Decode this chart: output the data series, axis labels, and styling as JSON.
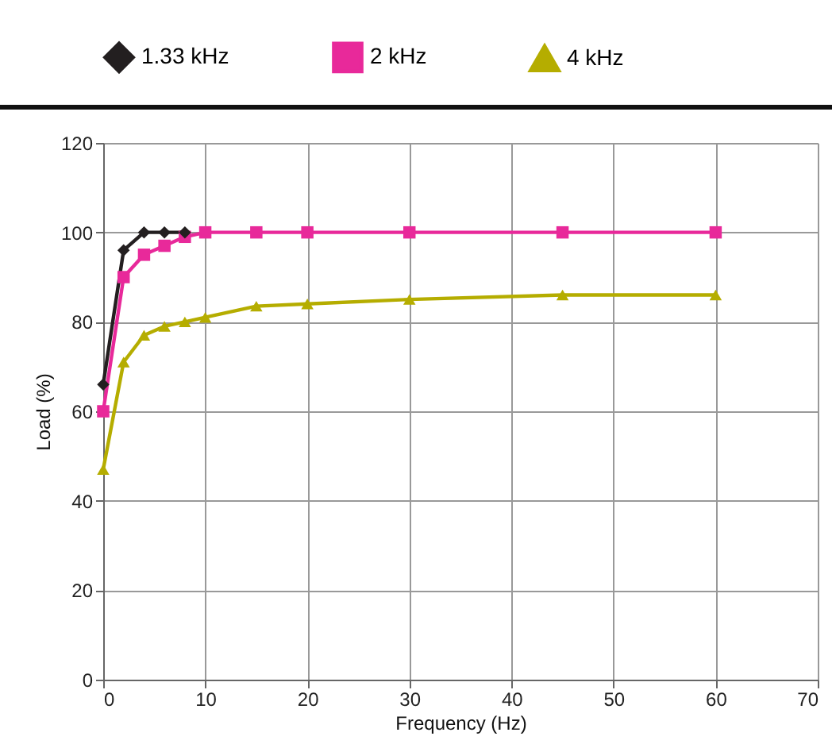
{
  "chart_data": {
    "type": "line",
    "xlabel": "Frequency (Hz)",
    "ylabel": "Load (%)",
    "xlim": [
      0,
      70
    ],
    "xticks": [
      0,
      10,
      20,
      30,
      40,
      50,
      60,
      70
    ],
    "ylim": [
      0,
      120
    ],
    "yticks": [
      0,
      20,
      40,
      60,
      80,
      100,
      120
    ],
    "grid": true,
    "legend": "top",
    "series": [
      {
        "name": "1.33 kHz",
        "color": "#231f20",
        "marker": "diamond",
        "x": [
          0,
          2,
          4,
          6,
          8
        ],
        "values": [
          66,
          96,
          100,
          100,
          100
        ]
      },
      {
        "name": "2 kHz",
        "color": "#e8299a",
        "marker": "square",
        "x": [
          0,
          2,
          4,
          6,
          8,
          10,
          15,
          20,
          30,
          45,
          60
        ],
        "values": [
          60,
          90,
          95,
          97,
          99,
          100,
          100,
          100,
          100,
          100,
          100
        ]
      },
      {
        "name": "4 kHz",
        "color": "#b5ad00",
        "marker": "triangle",
        "x": [
          0,
          2,
          4,
          6,
          8,
          10,
          15,
          20,
          30,
          45,
          60
        ],
        "values": [
          47,
          71,
          77,
          79,
          80,
          81,
          83.5,
          84,
          85,
          86,
          86
        ]
      }
    ]
  }
}
